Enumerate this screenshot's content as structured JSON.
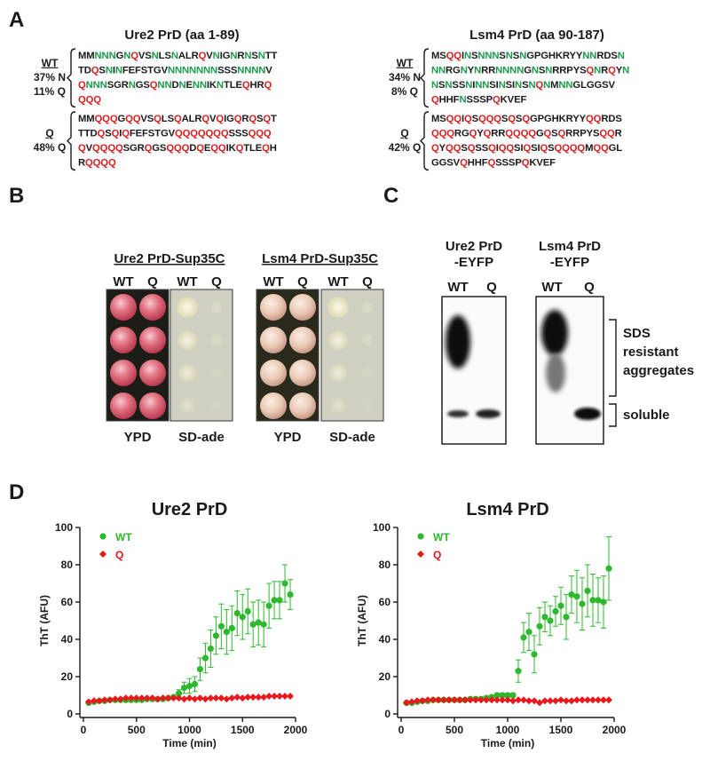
{
  "panels": {
    "a": "A",
    "b": "B",
    "c": "C",
    "d": "D"
  },
  "sequences": [
    {
      "title": "Ure2 PrD (aa 1-89)",
      "blocks": [
        {
          "label": "WT",
          "composition": [
            "37% N",
            "11% Q"
          ],
          "lines": [
            "MMNNNGNQVSNLSNALRQVNIGNRNSNTT",
            "TDQSNINFEFSTGVNNNNNNNSSSNNNNV",
            "QNNNSGRNGSQNNDNENNIKNTLEQHRQ",
            "QQQ"
          ]
        },
        {
          "label": "Q",
          "composition": [
            "48% Q"
          ],
          "lines": [
            "MMQQQGQQVSQLSQALRQVQIGQRQSQT",
            "TTDQSQIQFEFSTGVQQQQQQQSSSQQQ",
            "QVQQQQSGRQGSQQQDQEQQIKQTLEQH",
            "RQQQQ"
          ]
        }
      ]
    },
    {
      "title": "Lsm4 PrD (aa 90-187)",
      "blocks": [
        {
          "label": "WT",
          "composition": [
            "34% N",
            "8% Q"
          ],
          "lines": [
            "MSQQINSNNNSNSNGPGHKRYYNNRDSN",
            "NNRGNYNRRNNNNGNSNRRPYSQNRQYN",
            "NSNSSNINNSINSINSNQNMNNGLGGSV",
            "QHHFNSSSPQKVEF"
          ]
        },
        {
          "label": "Q",
          "composition": [
            "42% Q"
          ],
          "lines": [
            "MSQQIQSQQQSQSQGPGHKRYYQQRDS",
            "QQQRGQYQRRQQQQGQSQRRPYSQQR",
            "QYQQSQSSQIQQSIQSIQSQQQQMQQGL",
            "GGSVQHHFQSSSPQKVEF"
          ]
        }
      ]
    }
  ],
  "plates": [
    {
      "title": "Ure2 PrD-Sup35C",
      "groups": [
        {
          "columns": [
            "WT",
            "Q"
          ],
          "medium": "YPD"
        },
        {
          "columns": [
            "WT",
            "Q"
          ],
          "medium": "SD-ade"
        }
      ]
    },
    {
      "title": "Lsm4 PrD-Sup35C",
      "groups": [
        {
          "columns": [
            "WT",
            "Q"
          ],
          "medium": "YPD"
        },
        {
          "columns": [
            "WT",
            "Q"
          ],
          "medium": "SD-ade"
        }
      ]
    }
  ],
  "blot": {
    "lanes": [
      {
        "title": [
          "Ure2 PrD",
          "-EYFP"
        ],
        "columns": [
          "WT",
          "Q"
        ]
      },
      {
        "title": [
          "Lsm4 PrD",
          "-EYFP"
        ],
        "columns": [
          "WT",
          "Q"
        ]
      }
    ],
    "aggregates": [
      "SDS",
      "resistant",
      "aggregates"
    ],
    "soluble": "soluble"
  },
  "chart_data": [
    {
      "type": "scatter",
      "title": "Ure2 PrD",
      "x_label": "Time (min)",
      "y_label": "ThT (AFU)",
      "x": [
        50,
        100,
        150,
        200,
        250,
        300,
        350,
        400,
        450,
        500,
        550,
        600,
        650,
        700,
        750,
        800,
        850,
        900,
        950,
        1000,
        1050,
        1100,
        1150,
        1200,
        1250,
        1300,
        1350,
        1400,
        1450,
        1500,
        1550,
        1600,
        1650,
        1700,
        1750,
        1800,
        1850,
        1900,
        1950
      ],
      "series": [
        {
          "name": "WT",
          "color": "#2eb82e",
          "marker": "circle",
          "values": [
            6,
            6.5,
            7,
            7,
            7.5,
            7.5,
            7.5,
            7.5,
            7.5,
            7.5,
            7.5,
            8,
            8,
            8,
            8,
            8.5,
            9,
            11,
            14,
            15,
            16,
            24,
            30,
            35,
            42,
            47,
            44,
            46,
            54,
            52,
            55,
            48,
            49,
            48,
            58,
            61,
            61,
            70,
            64
          ],
          "errors": [
            0.5,
            0.5,
            0.5,
            0.5,
            0.5,
            0.5,
            0.5,
            0.5,
            0.5,
            0.5,
            0.5,
            0.5,
            0.5,
            0.5,
            0.5,
            0.5,
            0.5,
            2,
            3,
            4,
            4,
            6,
            8,
            10,
            10,
            12,
            12,
            12,
            12,
            12,
            12,
            12,
            12,
            12,
            12,
            10,
            10,
            10,
            8
          ]
        },
        {
          "name": "Q",
          "color": "#e8191c",
          "marker": "diamond",
          "values": [
            6.5,
            7,
            7,
            7.5,
            7.5,
            8,
            8,
            8.5,
            8.5,
            8.5,
            8.5,
            8.5,
            8.5,
            8,
            8.5,
            8.5,
            8.5,
            8.5,
            8,
            8.5,
            8,
            8.5,
            8,
            8.5,
            8.5,
            8.5,
            8,
            8.5,
            9,
            8.5,
            9,
            9,
            9,
            9,
            9.5,
            9.5,
            9.5,
            9.5,
            9.5
          ]
        }
      ],
      "xlim": [
        0,
        2000
      ],
      "xticks": [
        0,
        500,
        1000,
        1500,
        2000
      ],
      "ylim": [
        0,
        100
      ],
      "yticks": [
        0,
        20,
        40,
        60,
        80,
        100
      ],
      "legend": "upper left"
    },
    {
      "type": "scatter",
      "title": "Lsm4 PrD",
      "x_label": "Time (min)",
      "y_label": "ThT (AFU)",
      "x": [
        50,
        100,
        150,
        200,
        250,
        300,
        350,
        400,
        450,
        500,
        550,
        600,
        650,
        700,
        750,
        800,
        850,
        900,
        950,
        1000,
        1050,
        1100,
        1150,
        1200,
        1250,
        1300,
        1350,
        1400,
        1450,
        1500,
        1550,
        1600,
        1650,
        1700,
        1750,
        1800,
        1850,
        1900,
        1950
      ],
      "series": [
        {
          "name": "WT",
          "color": "#2eb82e",
          "marker": "circle",
          "values": [
            6,
            6,
            6.5,
            7,
            7,
            7.5,
            7.5,
            7.5,
            7.5,
            7.5,
            7.5,
            7.5,
            8,
            8,
            8,
            8.5,
            9,
            10,
            10,
            10,
            10,
            23,
            41,
            44,
            32,
            47,
            52,
            50,
            55,
            58,
            52,
            64,
            63,
            59,
            66,
            61,
            61,
            60,
            78
          ],
          "errors": [
            0.5,
            0.5,
            0.5,
            0.5,
            0.5,
            0.5,
            0.5,
            0.5,
            0.5,
            0.5,
            0.5,
            0.5,
            0.5,
            0.5,
            0.5,
            1,
            1,
            1,
            1,
            1,
            1,
            6,
            8,
            10,
            10,
            10,
            8,
            8,
            8,
            10,
            12,
            10,
            14,
            14,
            14,
            14,
            12,
            14,
            17
          ]
        },
        {
          "name": "Q",
          "color": "#e8191c",
          "marker": "diamond",
          "values": [
            6,
            6.5,
            7,
            7,
            7.5,
            7.5,
            7.5,
            7.5,
            7.5,
            7.5,
            7.5,
            7.5,
            7.5,
            7.5,
            7.5,
            7.5,
            7.5,
            7.5,
            7.5,
            7.5,
            7,
            7.5,
            7.5,
            7,
            7,
            6,
            7,
            7,
            7,
            7.5,
            7,
            7,
            7.5,
            7.5,
            7.5,
            7.5,
            7.5,
            7.5,
            7.5
          ]
        }
      ],
      "xlim": [
        0,
        2000
      ],
      "xticks": [
        0,
        500,
        1000,
        1500,
        2000
      ],
      "ylim": [
        0,
        100
      ],
      "yticks": [
        0,
        20,
        40,
        60,
        80,
        100
      ],
      "legend": "upper left"
    }
  ]
}
